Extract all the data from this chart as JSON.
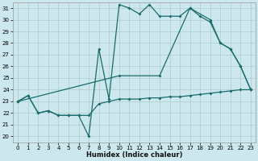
{
  "xlabel": "Humidex (Indice chaleur)",
  "bg_color": "#cce8ee",
  "grid_color": "#aacccc",
  "line_color": "#1a6b6b",
  "xlim": [
    -0.5,
    23.5
  ],
  "ylim": [
    19.5,
    31.5
  ],
  "xticks": [
    0,
    1,
    2,
    3,
    4,
    5,
    6,
    7,
    8,
    9,
    10,
    11,
    12,
    13,
    14,
    15,
    16,
    17,
    18,
    19,
    20,
    21,
    22,
    23
  ],
  "yticks": [
    20,
    21,
    22,
    23,
    24,
    25,
    26,
    27,
    28,
    29,
    30,
    31
  ],
  "line_flat": {
    "x": [
      0,
      1,
      2,
      3,
      4,
      5,
      6,
      7,
      8,
      9,
      10,
      11,
      12,
      13,
      14,
      15,
      16,
      17,
      18,
      19,
      20,
      21,
      22,
      23
    ],
    "y": [
      23,
      23.5,
      22,
      22.2,
      21.8,
      21.8,
      21.8,
      21.8,
      22.8,
      23.0,
      23.2,
      23.2,
      23.2,
      23.3,
      23.3,
      23.4,
      23.4,
      23.5,
      23.6,
      23.7,
      23.8,
      23.9,
      24.0,
      24.0
    ]
  },
  "line_spike": {
    "x": [
      0,
      1,
      2,
      3,
      4,
      5,
      6,
      7,
      8,
      9,
      10,
      11,
      12,
      13,
      14,
      15,
      16,
      17,
      18,
      19,
      20,
      21,
      22,
      23
    ],
    "y": [
      23,
      23.5,
      22,
      22.2,
      21.8,
      21.8,
      21.8,
      20.0,
      27.5,
      23.2,
      31.3,
      31.0,
      30.5,
      31.3,
      30.3,
      30.3,
      30.3,
      31.0,
      30.3,
      29.8,
      28.0,
      27.5,
      26.0,
      24.0
    ]
  },
  "line_diag": {
    "x": [
      0,
      10,
      14,
      17,
      19,
      20,
      21,
      22,
      23
    ],
    "y": [
      23,
      25.2,
      25.2,
      31.0,
      30.0,
      28.0,
      27.5,
      26.0,
      24.0
    ]
  }
}
